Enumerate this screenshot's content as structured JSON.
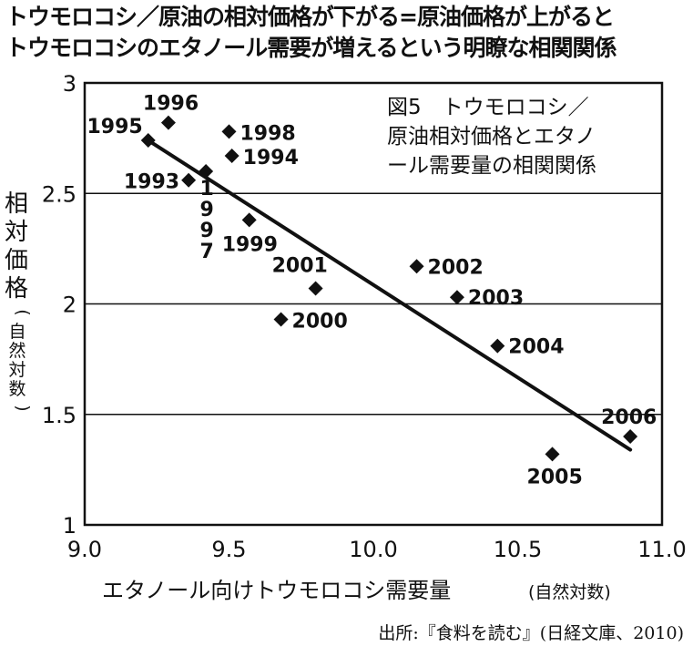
{
  "headline": {
    "line1": "トウモロコシ／原油の相対価格が下がる=原油価格が上がると",
    "line2": "トウモロコシのエタノール需要が増えるという明瞭な相関関係"
  },
  "figure_title": [
    "図5　トウモロコシ／",
    "原油相対価格とエタノ",
    "ール需要量の相関関係"
  ],
  "source": "出所:『食料を読む』(日経文庫、2010)",
  "chart_data": {
    "type": "scatter",
    "xlabel": "エタノール向けトウモロコシ需要量",
    "xlabel_unit": "(自然対数)",
    "ylabel_chars": [
      "相",
      "対",
      "価",
      "格"
    ],
    "ylabel_unit_chars": [
      "(",
      "自",
      "然",
      "対",
      "数",
      ")"
    ],
    "xlim": [
      9.0,
      11.0
    ],
    "ylim": [
      1,
      3
    ],
    "xticks": [
      "9.0",
      "9.5",
      "10.0",
      "10.5",
      "11.0"
    ],
    "yticks": [
      "1",
      "1.5",
      "2",
      "2.5",
      "3"
    ],
    "grid": "horizontal",
    "points": [
      {
        "label": "1993",
        "x": 9.36,
        "y": 2.56
      },
      {
        "label": "1995",
        "x": 9.22,
        "y": 2.74
      },
      {
        "label": "1996",
        "x": 9.29,
        "y": 2.82
      },
      {
        "label": "1997",
        "x": 9.42,
        "y": 2.6
      },
      {
        "label": "1998",
        "x": 9.5,
        "y": 2.78
      },
      {
        "label": "1994",
        "x": 9.51,
        "y": 2.67
      },
      {
        "label": "1999",
        "x": 9.57,
        "y": 2.38
      },
      {
        "label": "2001",
        "x": 9.8,
        "y": 2.07
      },
      {
        "label": "2000",
        "x": 9.68,
        "y": 1.93
      },
      {
        "label": "2002",
        "x": 10.15,
        "y": 2.17
      },
      {
        "label": "2003",
        "x": 10.29,
        "y": 2.03
      },
      {
        "label": "2004",
        "x": 10.43,
        "y": 1.81
      },
      {
        "label": "2005",
        "x": 10.62,
        "y": 1.32
      },
      {
        "label": "2006",
        "x": 10.89,
        "y": 1.4
      }
    ],
    "trendline": {
      "x": [
        9.22,
        10.89
      ],
      "y": [
        2.74,
        1.34
      ]
    }
  }
}
